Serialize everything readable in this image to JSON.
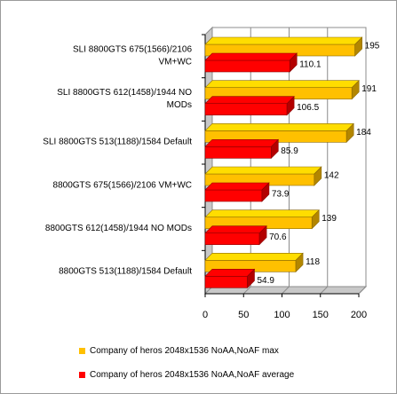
{
  "chart_data": {
    "type": "bar",
    "orientation": "horizontal",
    "style": "3d",
    "categories": [
      [
        "SLI 8800GTS 675(1566)/2106",
        "VM+WC"
      ],
      [
        "SLI 8800GTS 612(1458)/1944 NO",
        "MODs"
      ],
      [
        "SLI 8800GTS 513(1188)/1584 Default"
      ],
      [
        "8800GTS 675(1566)/2106 VM+WC"
      ],
      [
        "8800GTS 612(1458)/1944 NO MODs"
      ],
      [
        "8800GTS 513(1188)/1584 Default"
      ]
    ],
    "series": [
      {
        "name": "Company of heros 2048x1536 NoAA,NoAF max",
        "color": "#ffc000",
        "values": [
          195,
          191,
          184,
          142,
          139,
          118
        ],
        "labels": [
          "195",
          "191",
          "184",
          "142",
          "139",
          "118"
        ]
      },
      {
        "name": "Company of heros 2048x1536 NoAA,NoAF average",
        "color": "#ff0000",
        "values": [
          110.1,
          106.5,
          85.9,
          73.9,
          70.6,
          54.9
        ],
        "labels": [
          "110.1",
          "106.5",
          "85.9",
          "73.9",
          "70.6",
          "54.9"
        ]
      }
    ],
    "xlim": [
      0,
      200
    ],
    "xticks": [
      "0",
      "50",
      "100",
      "150",
      "200"
    ],
    "grid": true,
    "legend_position": "bottom"
  }
}
